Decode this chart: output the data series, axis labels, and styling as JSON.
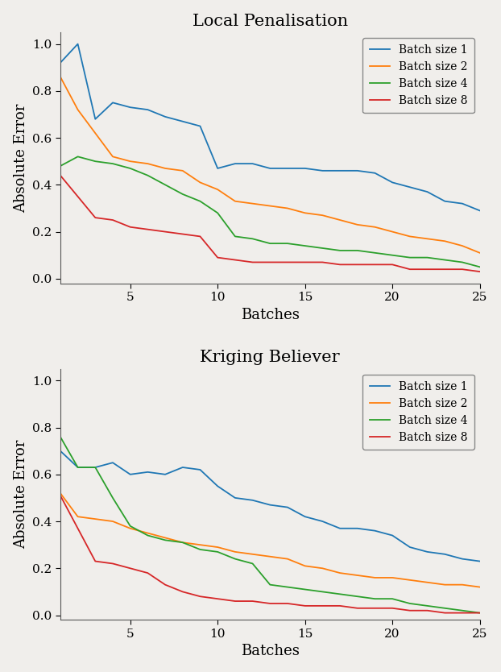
{
  "title1": "Local Penalisation",
  "title2": "Kriging Believer",
  "xlabel": "Batches",
  "ylabel": "Absolute Error",
  "xlim": [
    1,
    25
  ],
  "ylim": [
    -0.02,
    1.05
  ],
  "colors": [
    "#1f77b4",
    "#ff7f0e",
    "#2ca02c",
    "#d62728"
  ],
  "legend_labels": [
    "Batch size 1",
    "Batch size 2",
    "Batch size 4",
    "Batch size 8"
  ],
  "lp_batch1": [
    0.92,
    1.0,
    0.68,
    0.75,
    0.73,
    0.72,
    0.69,
    0.67,
    0.65,
    0.47,
    0.49,
    0.49,
    0.47,
    0.47,
    0.47,
    0.46,
    0.46,
    0.46,
    0.45,
    0.41,
    0.39,
    0.37,
    0.33,
    0.32,
    0.29
  ],
  "lp_batch2": [
    0.86,
    0.72,
    0.62,
    0.52,
    0.5,
    0.49,
    0.47,
    0.46,
    0.41,
    0.38,
    0.33,
    0.32,
    0.31,
    0.3,
    0.28,
    0.27,
    0.25,
    0.23,
    0.22,
    0.2,
    0.18,
    0.17,
    0.16,
    0.14,
    0.11
  ],
  "lp_batch4": [
    0.48,
    0.52,
    0.5,
    0.49,
    0.47,
    0.44,
    0.4,
    0.36,
    0.33,
    0.28,
    0.18,
    0.17,
    0.15,
    0.15,
    0.14,
    0.13,
    0.12,
    0.12,
    0.11,
    0.1,
    0.09,
    0.09,
    0.08,
    0.07,
    0.05
  ],
  "lp_batch8": [
    0.44,
    0.35,
    0.26,
    0.25,
    0.22,
    0.21,
    0.2,
    0.19,
    0.18,
    0.09,
    0.08,
    0.07,
    0.07,
    0.07,
    0.07,
    0.07,
    0.06,
    0.06,
    0.06,
    0.06,
    0.04,
    0.04,
    0.04,
    0.04,
    0.03
  ],
  "kb_batch1": [
    0.7,
    0.63,
    0.63,
    0.65,
    0.6,
    0.61,
    0.6,
    0.63,
    0.62,
    0.55,
    0.5,
    0.49,
    0.47,
    0.46,
    0.42,
    0.4,
    0.37,
    0.37,
    0.36,
    0.34,
    0.29,
    0.27,
    0.26,
    0.24,
    0.23
  ],
  "kb_batch2": [
    0.52,
    0.42,
    0.41,
    0.4,
    0.37,
    0.35,
    0.33,
    0.31,
    0.3,
    0.29,
    0.27,
    0.26,
    0.25,
    0.24,
    0.21,
    0.2,
    0.18,
    0.17,
    0.16,
    0.16,
    0.15,
    0.14,
    0.13,
    0.13,
    0.12
  ],
  "kb_batch4": [
    0.76,
    0.63,
    0.63,
    0.5,
    0.38,
    0.34,
    0.32,
    0.31,
    0.28,
    0.27,
    0.24,
    0.22,
    0.13,
    0.12,
    0.11,
    0.1,
    0.09,
    0.08,
    0.07,
    0.07,
    0.05,
    0.04,
    0.03,
    0.02,
    0.01
  ],
  "kb_batch8": [
    0.51,
    0.37,
    0.23,
    0.22,
    0.2,
    0.18,
    0.13,
    0.1,
    0.08,
    0.07,
    0.06,
    0.06,
    0.05,
    0.05,
    0.04,
    0.04,
    0.04,
    0.03,
    0.03,
    0.03,
    0.02,
    0.02,
    0.01,
    0.01,
    0.01
  ],
  "figsize": [
    6.22,
    8.34
  ],
  "dpi": 100,
  "title_fontsize": 15,
  "axis_label_fontsize": 13,
  "tick_fontsize": 11,
  "legend_fontsize": 10,
  "bg_color": "#f0eeeb"
}
